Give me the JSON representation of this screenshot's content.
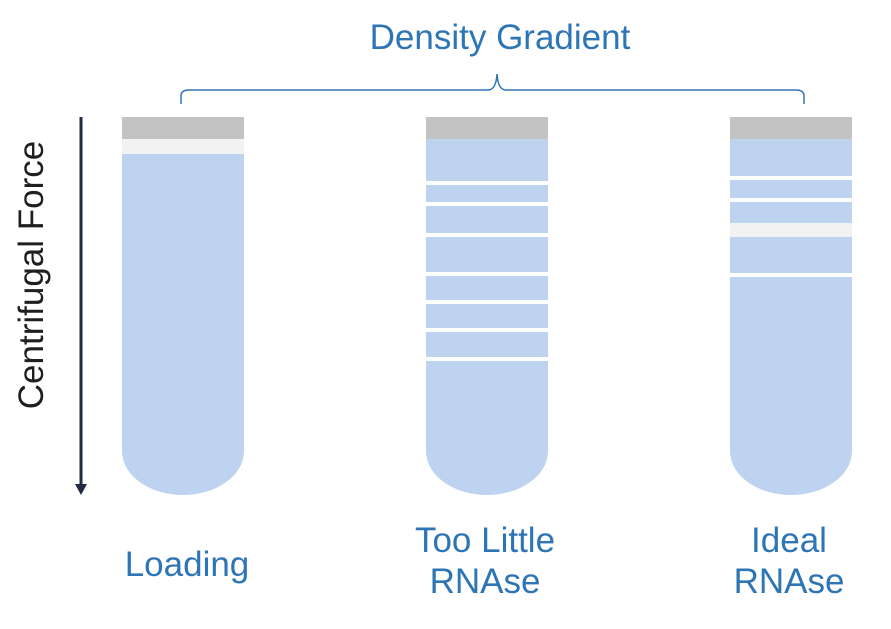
{
  "title": "Density Gradient",
  "axis_label": "Centrifugal Force",
  "tubes": [
    {
      "id": "loading",
      "label_lines": [
        "Loading"
      ]
    },
    {
      "id": "too-little",
      "label_lines": [
        "Too Little",
        "RNAse"
      ]
    },
    {
      "id": "ideal",
      "label_lines": [
        "Ideal",
        "RNAse"
      ]
    }
  ],
  "colors": {
    "title": "#2E75B6",
    "tube_fill": "#BDD3EF",
    "tube_cap": "#C3C3C3",
    "band": "#FFFFFF",
    "arrow": "#1F2A44"
  }
}
